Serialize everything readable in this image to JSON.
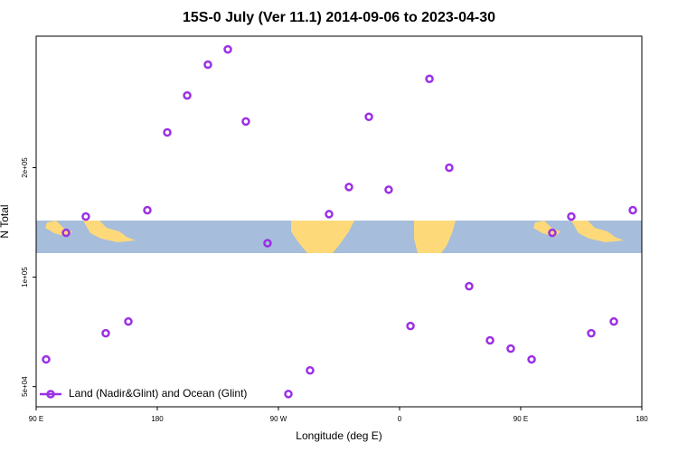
{
  "chart_data": {
    "type": "scatter",
    "title": "15S-0 July (Ver 11.1)   2014-09-06 to 2023-04-30",
    "x_label": "Longitude (deg E)",
    "y_label": "N Total",
    "log_y": true,
    "legend_position": "bottom left",
    "xlim": [
      90,
      540
    ],
    "xticks": [
      {
        "value": 90,
        "label": "90 E"
      },
      180,
      {
        "value": 270,
        "label": "90 W"
      },
      {
        "value": 360,
        "label": "0"
      },
      {
        "value": 450,
        "label": "90 E"
      },
      {
        "value": 540,
        "label": "180"
      }
    ],
    "ylim": [
      44000,
      460000
    ],
    "yticks": [
      {
        "value": 50000,
        "label": "5e+04"
      },
      {
        "value": 100000,
        "label": "1e+05"
      },
      {
        "value": 200000,
        "label": "2e+05"
      }
    ],
    "series": [
      {
        "name": "Land (Nadir&Glint) and Ocean (Glint)",
        "color": "#9b30e6",
        "x": [
          97.4,
          112.2,
          126.9,
          141.7,
          158.5,
          172.6,
          187.4,
          202.2,
          217.6,
          232.4,
          245.8,
          261.9,
          277.4,
          293.5,
          307.6,
          322.4,
          337.2,
          351.9,
          368.1,
          382.2,
          396.9,
          411.7,
          427.2,
          442.6,
          458.1,
          473.5,
          487.6,
          502.4,
          519.2,
          533.3
        ],
        "values": [
          59400,
          132400,
          146800,
          70100,
          75500,
          152800,
          250000,
          316000,
          384000,
          423000,
          268000,
          124000,
          47700,
          55400,
          149000,
          177000,
          276000,
          174000,
          73400,
          351000,
          200000,
          94400,
          67000,
          63600,
          59400,
          132400,
          146800,
          70100,
          75500,
          152800
        ]
      }
    ]
  }
}
